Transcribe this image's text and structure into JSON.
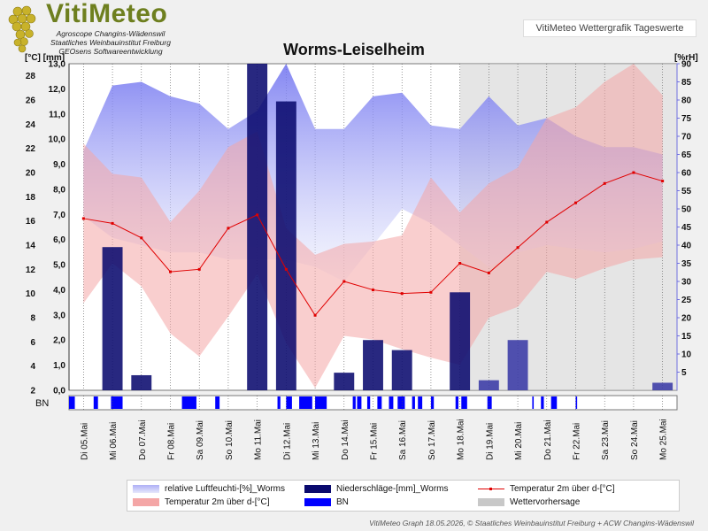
{
  "header": {
    "brand": "VitiMeteo",
    "org1": "Agroscope Changins-Wädenswil",
    "org2": "Staatliches Weinbauinstitut Freiburg",
    "org3": "GEOsens Softwareentwicklung",
    "graph_label": "VitiMeteo Wettergrafik Tageswerte"
  },
  "footer": "VitiMeteo Graph 18.05.2026, © Staatliches Weinbauinstitut Freiburg + ACW Changins-Wädenswil",
  "chart_data": {
    "type": "line",
    "title": "Worms-Leiselheim",
    "categories": [
      "Di 05.Mai",
      "Mi 06.Mai",
      "Do 07.Mai",
      "Fr 08.Mai",
      "Sa 09.Mai",
      "So 10.Mai",
      "Mo 11.Mai",
      "Di 12.Mai",
      "Mi 13.Mai",
      "Do 14.Mai",
      "Fr 15.Mai",
      "Sa 16.Mai",
      "So 17.Mai",
      "Mo 18.Mai",
      "Di 19.Mai",
      "Mi 20.Mai",
      "Do 21.Mai",
      "Fr 22.Mai",
      "Sa 23.Mai",
      "So 24.Mai",
      "Mo 25.Mai"
    ],
    "left_axis_label": "[°C] [mm]",
    "right_axis_label": "[%rH]",
    "temp_axis": {
      "range": [
        2,
        29
      ],
      "ticks": [
        2,
        4,
        6,
        8,
        10,
        12,
        14,
        16,
        18,
        20,
        22,
        24,
        26,
        28
      ]
    },
    "precip_axis": {
      "range": [
        0,
        13.0
      ],
      "ticks": [
        "0,0",
        "1,0",
        "2,0",
        "3,0",
        "4,0",
        "5,0",
        "6,0",
        "7,0",
        "8,0",
        "9,0",
        "10,0",
        "11,0",
        "12,0",
        "13,0"
      ]
    },
    "humidity_axis": {
      "range": [
        0,
        90
      ],
      "ticks": [
        5,
        10,
        15,
        20,
        25,
        30,
        35,
        40,
        45,
        50,
        55,
        60,
        65,
        70,
        75,
        80,
        85,
        90
      ]
    },
    "forecast_from_index": 14,
    "series": [
      {
        "name": "relative Luftfeuchti-[%]_Worms",
        "kind": "area-humidity",
        "color": "#7a7ef0",
        "max": [
          66,
          84,
          85,
          81,
          79,
          72,
          77,
          90,
          72,
          72,
          81,
          82,
          73,
          72,
          81,
          73,
          75,
          70,
          67,
          67,
          65
        ],
        "min": [
          48,
          42,
          40,
          38,
          38,
          36,
          36,
          36,
          34,
          30,
          40,
          50,
          46,
          40,
          34,
          38,
          40,
          39,
          38,
          39,
          41
        ]
      },
      {
        "name": "Niederschläge-[mm]_Worms",
        "kind": "bar-precip",
        "color": "#0a0a6e",
        "values": [
          0,
          5.7,
          0.6,
          0,
          0,
          0,
          13.0,
          11.5,
          0,
          0.7,
          2.0,
          1.6,
          0,
          3.9,
          0.4,
          2.0,
          0,
          0,
          0,
          0,
          0.3
        ]
      },
      {
        "name": "Temperatur 2m über d-[°C]",
        "kind": "line-temp",
        "color": "#e00000",
        "values": [
          16.2,
          15.8,
          14.6,
          11.8,
          12.0,
          15.4,
          16.5,
          12.0,
          8.2,
          11.0,
          10.3,
          10.0,
          10.1,
          12.5,
          11.7,
          13.8,
          15.9,
          17.5,
          19.1,
          20.0,
          19.3
        ]
      },
      {
        "name": "Temperatur 2m über d-[°C]",
        "kind": "band-temp",
        "color": "#f4a6a6",
        "max": [
          22.4,
          19.9,
          19.6,
          15.9,
          18.5,
          22.1,
          23.4,
          15.4,
          13.2,
          14.1,
          14.3,
          14.8,
          19.6,
          16.7,
          19.1,
          20.4,
          24.5,
          25.4,
          27.5,
          29.0,
          26.4
        ],
        "min": [
          9.2,
          12.5,
          10.6,
          6.7,
          4.8,
          8.1,
          11.6,
          5.9,
          2.2,
          6.5,
          6.2,
          5.4,
          4.7,
          4.1,
          8.0,
          8.9,
          11.8,
          11.2,
          12.1,
          12.8,
          13.0
        ]
      },
      {
        "name": "BN",
        "kind": "bn-strip",
        "color": "#0000ff",
        "intervals": [
          [
            0,
            0.2
          ],
          [
            0.85,
            1.0
          ],
          [
            1.45,
            1.85
          ],
          [
            3.9,
            4.4
          ],
          [
            5.05,
            5.2
          ],
          [
            7.2,
            7.3
          ],
          [
            7.5,
            7.7
          ],
          [
            7.95,
            8.4
          ],
          [
            8.5,
            8.9
          ],
          [
            9.8,
            9.9
          ],
          [
            9.95,
            10.1
          ],
          [
            10.3,
            10.4
          ],
          [
            10.65,
            10.8
          ],
          [
            11.05,
            11.2
          ],
          [
            11.35,
            11.6
          ],
          [
            11.85,
            11.95
          ],
          [
            12.05,
            12.2
          ],
          [
            12.5,
            12.6
          ],
          [
            13.35,
            13.45
          ],
          [
            13.55,
            13.75
          ],
          [
            14.45,
            14.6
          ],
          [
            16.0,
            16.05
          ],
          [
            16.3,
            16.4
          ],
          [
            16.65,
            16.85
          ],
          [
            17.5,
            17.55
          ]
        ]
      }
    ],
    "legend": [
      {
        "label": "relative Luftfeuchti-[%]_Worms",
        "swatch": "humidity"
      },
      {
        "label": "Niederschläge-[mm]_Worms",
        "swatch": "precip"
      },
      {
        "label": "Temperatur 2m über d-[°C]",
        "swatch": "tempLine"
      },
      {
        "label": "Temperatur 2m über d-[°C]",
        "swatch": "tempBand"
      },
      {
        "label": "BN",
        "swatch": "bn"
      },
      {
        "label": "Wettervorhersage",
        "swatch": "forecast"
      }
    ],
    "bn_label": "BN"
  }
}
